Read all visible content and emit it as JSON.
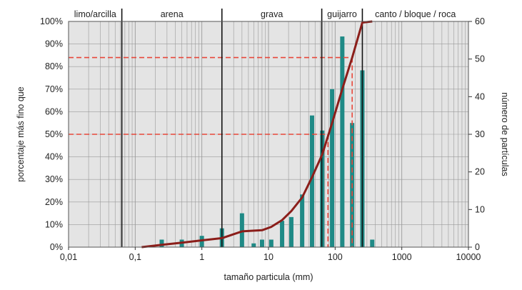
{
  "chart_data": {
    "type": "bar+line",
    "xlabel": "tamaño particula (mm)",
    "ylabel_left": "porcentaje más fino que",
    "ylabel_right": "número de partículas",
    "x_scale": "log",
    "xlim": [
      0.01,
      10000
    ],
    "x_ticks": [
      {
        "v": 0.01,
        "label": "0,01"
      },
      {
        "v": 0.1,
        "label": "0,1"
      },
      {
        "v": 1,
        "label": "1"
      },
      {
        "v": 10,
        "label": "10"
      },
      {
        "v": 100,
        "label": "100"
      },
      {
        "v": 1000,
        "label": "1000"
      },
      {
        "v": 10000,
        "label": "10000"
      }
    ],
    "ylim_left": [
      0,
      100
    ],
    "y_ticks_left": [
      "0%",
      "10%",
      "20%",
      "30%",
      "40%",
      "50%",
      "60%",
      "70%",
      "80%",
      "90%",
      "100%"
    ],
    "ylim_right": [
      0,
      60
    ],
    "y_ticks_right": [
      "0",
      "10",
      "20",
      "30",
      "40",
      "50",
      "60"
    ],
    "grid": true,
    "zones": [
      {
        "label": "limo/arcilla",
        "from": 0.01,
        "to": 0.063
      },
      {
        "label": "arena",
        "from": 0.063,
        "to": 2
      },
      {
        "label": "grava",
        "from": 2,
        "to": 63
      },
      {
        "label": "guijarro",
        "from": 63,
        "to": 256
      },
      {
        "label": "canto / bloque / roca",
        "from": 256,
        "to": 10000
      }
    ],
    "bars": {
      "name": "número de partículas",
      "x": [
        0.25,
        0.5,
        1,
        2,
        4,
        6,
        8,
        11,
        16,
        22,
        32,
        45,
        64,
        90,
        128,
        180,
        256,
        360
      ],
      "values": [
        2,
        2,
        3,
        5,
        9,
        1,
        2,
        2,
        7,
        8,
        14,
        35,
        31,
        42,
        56,
        33,
        47,
        2
      ]
    },
    "cumulative": {
      "name": "porcentaje más fino que",
      "x": [
        0.125,
        0.25,
        0.5,
        1,
        2,
        4,
        8,
        11,
        16,
        22,
        32,
        45,
        64,
        90,
        128,
        180,
        256,
        360
      ],
      "values": [
        0,
        1,
        2,
        3,
        4,
        7,
        7.5,
        9,
        12,
        16,
        22,
        31,
        41,
        55,
        70,
        84,
        99.5,
        100
      ]
    },
    "reference_lines": [
      {
        "percent": 50,
        "x": 78
      },
      {
        "percent": 84,
        "x": 180
      }
    ],
    "colors": {
      "bars": "#1f8a86",
      "cumulative": "#8b1e1a",
      "reference": "#e8473a",
      "plot_bg": "#e4e4e4",
      "grid": "#9a9a9a"
    }
  }
}
